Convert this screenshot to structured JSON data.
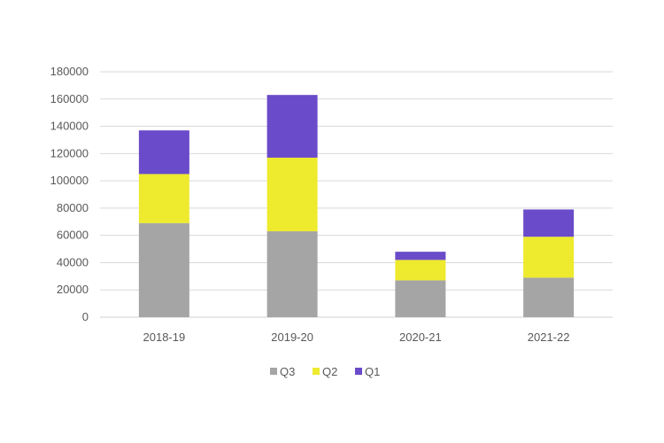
{
  "chart_data": {
    "type": "bar",
    "stacked": true,
    "categories": [
      "2018-19",
      "2019-20",
      "2020-21",
      "2021-22"
    ],
    "series": [
      {
        "name": "Q3",
        "color": "#a5a5a5",
        "values": [
          69000,
          63000,
          27000,
          29000
        ]
      },
      {
        "name": "Q2",
        "color": "#eeea2e",
        "values": [
          36000,
          54000,
          15000,
          30000
        ]
      },
      {
        "name": "Q1",
        "color": "#6a4bc9",
        "values": [
          32000,
          46000,
          6000,
          20000
        ]
      }
    ],
    "ylim": [
      0,
      180000
    ],
    "yticks": [
      "0",
      "20000",
      "40000",
      "60000",
      "80000",
      "100000",
      "120000",
      "140000",
      "160000",
      "180000"
    ],
    "grid": true,
    "legend": "bottom"
  }
}
